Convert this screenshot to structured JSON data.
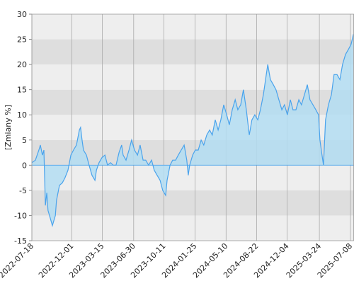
{
  "chart_data": {
    "type": "area",
    "y_label": "[Zmiany %]",
    "x": [
      "2022-07-18",
      "2022-07-30",
      "2022-08-11",
      "2022-08-16",
      "2022-08-23",
      "2022-08-28",
      "2022-09-02",
      "2022-09-07",
      "2022-09-11",
      "2022-09-16",
      "2022-09-26",
      "2022-10-06",
      "2022-10-10",
      "2022-10-20",
      "2022-10-30",
      "2022-11-08",
      "2022-11-18",
      "2022-11-28",
      "2022-12-07",
      "2022-12-17",
      "2022-12-27",
      "2022-12-31",
      "2023-01-05",
      "2023-01-10",
      "2023-01-20",
      "2023-01-29",
      "2023-02-08",
      "2023-02-18",
      "2023-02-23",
      "2023-03-04",
      "2023-03-14",
      "2023-03-24",
      "2023-04-02",
      "2023-04-12",
      "2023-04-21",
      "2023-05-01",
      "2023-05-11",
      "2023-05-20",
      "2023-05-25",
      "2023-06-04",
      "2023-06-14",
      "2023-06-23",
      "2023-07-03",
      "2023-07-13",
      "2023-07-22",
      "2023-08-01",
      "2023-08-10",
      "2023-08-20",
      "2023-08-30",
      "2023-09-08",
      "2023-09-18",
      "2023-09-28",
      "2023-10-07",
      "2023-10-17",
      "2023-10-22",
      "2023-11-01",
      "2023-11-10",
      "2023-11-20",
      "2023-11-29",
      "2023-12-09",
      "2023-12-19",
      "2023-12-28",
      "2024-01-02",
      "2024-01-07",
      "2024-01-17",
      "2024-01-26",
      "2024-02-05",
      "2024-02-15",
      "2024-02-24",
      "2024-03-05",
      "2024-03-15",
      "2024-03-24",
      "2024-04-03",
      "2024-04-13",
      "2024-04-22",
      "2024-05-02",
      "2024-05-12",
      "2024-05-21",
      "2024-05-31",
      "2024-06-10",
      "2024-06-19",
      "2024-06-29",
      "2024-07-08",
      "2024-07-18",
      "2024-07-28",
      "2024-08-06",
      "2024-08-16",
      "2024-08-26",
      "2024-09-04",
      "2024-09-14",
      "2024-09-24",
      "2024-09-29",
      "2024-10-08",
      "2024-10-18",
      "2024-10-27",
      "2024-11-06",
      "2024-11-16",
      "2024-11-25",
      "2024-12-05",
      "2024-12-15",
      "2024-12-24",
      "2025-01-03",
      "2025-01-13",
      "2025-01-22",
      "2025-02-01",
      "2025-02-11",
      "2025-02-20",
      "2025-03-02",
      "2025-03-12",
      "2025-03-21",
      "2025-03-26",
      "2025-04-02",
      "2025-04-07",
      "2025-04-14",
      "2025-04-24",
      "2025-05-04",
      "2025-05-13",
      "2025-05-23",
      "2025-06-02",
      "2025-06-11",
      "2025-06-21",
      "2025-07-01",
      "2025-07-10",
      "2025-07-18"
    ],
    "values": [
      0.5,
      1,
      3,
      4,
      2,
      3,
      -8,
      -5.5,
      -9,
      -10,
      -12,
      -10,
      -7,
      -4,
      -3.5,
      -2.5,
      -1,
      2,
      3,
      4,
      7,
      7.5,
      5,
      3,
      2,
      0,
      -2,
      -3,
      -1,
      0.5,
      1.5,
      2,
      0,
      0.5,
      0,
      0,
      2.5,
      4,
      2,
      1,
      3,
      5,
      3,
      2,
      4,
      1,
      1,
      0,
      1,
      -1,
      -2,
      -3,
      -5,
      -6,
      -3,
      0,
      1,
      1,
      2,
      3,
      4,
      1,
      -2,
      0,
      2,
      3,
      3,
      5,
      4,
      6,
      7,
      6,
      9,
      7,
      9,
      12,
      10,
      8,
      11,
      13,
      11,
      12,
      15,
      11,
      6,
      9,
      10,
      9,
      11,
      14,
      18,
      20,
      17,
      16,
      15,
      13,
      11,
      12,
      10,
      13,
      11,
      11,
      13,
      12,
      14,
      16,
      13,
      12,
      11,
      10,
      5,
      2,
      0,
      9,
      12,
      14,
      18,
      18,
      17,
      20,
      22,
      23,
      24,
      26
    ],
    "line_color": "#4aa3ec",
    "fill_color": "#b3ddf2",
    "xlim": [
      "2022-07-18",
      "2025-07-20"
    ],
    "xticks": [
      "2022-07-18",
      "2022-12-01",
      "2023-03-15",
      "2023-06-30",
      "2023-10-11",
      "2024-01-25",
      "2024-05-10",
      "2024-08-22",
      "2024-12-04",
      "2025-03-24",
      "2025-07-08"
    ],
    "ylim": [
      -15,
      30
    ],
    "yticks": [
      -15,
      -10,
      -5,
      0,
      5,
      10,
      15,
      20,
      25,
      30
    ],
    "grid": true
  }
}
